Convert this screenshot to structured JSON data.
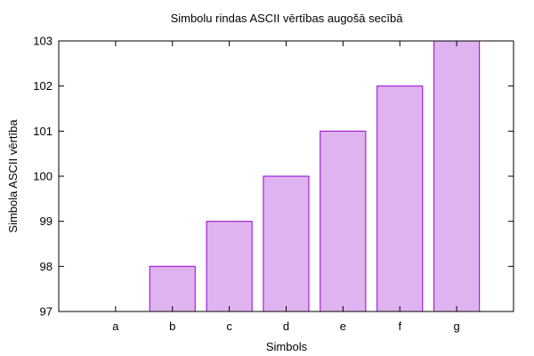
{
  "chart_data": {
    "type": "bar",
    "title": "Simbolu rindas ASCII vērtības augošā secībā",
    "xlabel": "Simbols",
    "ylabel": "Simbola ASCII vērtība",
    "categories": [
      "a",
      "b",
      "c",
      "d",
      "e",
      "f",
      "g"
    ],
    "values": [
      97,
      98,
      99,
      100,
      101,
      102,
      103
    ],
    "ylim": [
      97,
      103
    ],
    "yticks": [
      97,
      98,
      99,
      100,
      101,
      102,
      103
    ],
    "grid": false,
    "legend": "none",
    "bar_fill": "#dfb3f0",
    "bar_stroke": "#9400d3"
  }
}
